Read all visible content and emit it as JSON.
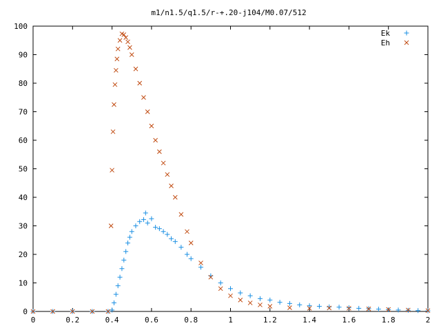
{
  "chart_data": {
    "type": "scatter",
    "title": "m1/n1.5/q1.5/r-+.20-j104/M0.07/512",
    "xlabel": "",
    "ylabel": "",
    "xlim": [
      0,
      2
    ],
    "ylim": [
      0,
      100
    ],
    "xticks": [
      "0",
      "0.2",
      "0.4",
      "0.6",
      "0.8",
      "1",
      "1.2",
      "1.4",
      "1.6",
      "1.8",
      "2"
    ],
    "yticks": [
      "0",
      "10",
      "20",
      "30",
      "40",
      "50",
      "60",
      "70",
      "80",
      "90",
      "100"
    ],
    "legend_position": "top-right",
    "grid": false,
    "series": [
      {
        "name": "Ek",
        "marker": "plus",
        "color": "#1a8fe3",
        "points": [
          [
            0.0,
            0
          ],
          [
            0.1,
            0
          ],
          [
            0.2,
            0
          ],
          [
            0.3,
            0
          ],
          [
            0.38,
            0
          ],
          [
            0.4,
            0.5
          ],
          [
            0.41,
            3
          ],
          [
            0.42,
            6
          ],
          [
            0.43,
            9
          ],
          [
            0.44,
            12
          ],
          [
            0.45,
            15
          ],
          [
            0.46,
            18
          ],
          [
            0.47,
            21
          ],
          [
            0.48,
            24
          ],
          [
            0.49,
            26
          ],
          [
            0.5,
            28
          ],
          [
            0.52,
            30
          ],
          [
            0.54,
            31.5
          ],
          [
            0.56,
            32.2
          ],
          [
            0.57,
            34.5
          ],
          [
            0.58,
            31
          ],
          [
            0.6,
            32.5
          ],
          [
            0.62,
            29.5
          ],
          [
            0.64,
            29
          ],
          [
            0.66,
            28
          ],
          [
            0.68,
            27
          ],
          [
            0.7,
            25.5
          ],
          [
            0.72,
            24.5
          ],
          [
            0.75,
            22.5
          ],
          [
            0.78,
            20
          ],
          [
            0.8,
            18.5
          ],
          [
            0.85,
            15.5
          ],
          [
            0.9,
            12.5
          ],
          [
            0.95,
            10
          ],
          [
            1.0,
            8
          ],
          [
            1.05,
            6.5
          ],
          [
            1.1,
            5.5
          ],
          [
            1.15,
            4.5
          ],
          [
            1.2,
            4
          ],
          [
            1.25,
            3.2
          ],
          [
            1.3,
            2.8
          ],
          [
            1.35,
            2.3
          ],
          [
            1.4,
            2
          ],
          [
            1.45,
            1.8
          ],
          [
            1.5,
            1.6
          ],
          [
            1.55,
            1.5
          ],
          [
            1.6,
            1.3
          ],
          [
            1.65,
            1.1
          ],
          [
            1.7,
            1
          ],
          [
            1.75,
            0.8
          ],
          [
            1.8,
            0.6
          ],
          [
            1.85,
            0.5
          ],
          [
            1.9,
            0.4
          ],
          [
            1.95,
            0.3
          ],
          [
            2.0,
            0.2
          ]
        ]
      },
      {
        "name": "Eh",
        "marker": "cross",
        "color": "#c04a10",
        "points": [
          [
            0.0,
            0
          ],
          [
            0.1,
            0
          ],
          [
            0.2,
            0
          ],
          [
            0.3,
            0
          ],
          [
            0.38,
            0
          ],
          [
            0.395,
            30
          ],
          [
            0.4,
            49.5
          ],
          [
            0.405,
            63
          ],
          [
            0.41,
            72.5
          ],
          [
            0.415,
            79.5
          ],
          [
            0.42,
            84.5
          ],
          [
            0.425,
            88.5
          ],
          [
            0.43,
            92
          ],
          [
            0.44,
            95
          ],
          [
            0.45,
            97.3
          ],
          [
            0.46,
            97
          ],
          [
            0.47,
            96
          ],
          [
            0.48,
            94.5
          ],
          [
            0.49,
            92.5
          ],
          [
            0.5,
            90
          ],
          [
            0.52,
            85
          ],
          [
            0.54,
            80
          ],
          [
            0.56,
            75
          ],
          [
            0.58,
            70
          ],
          [
            0.6,
            65
          ],
          [
            0.62,
            60
          ],
          [
            0.64,
            56
          ],
          [
            0.66,
            52
          ],
          [
            0.68,
            48
          ],
          [
            0.7,
            44
          ],
          [
            0.72,
            40
          ],
          [
            0.75,
            34
          ],
          [
            0.78,
            28
          ],
          [
            0.8,
            24
          ],
          [
            0.85,
            17
          ],
          [
            0.9,
            12
          ],
          [
            0.95,
            8
          ],
          [
            1.0,
            5.5
          ],
          [
            1.05,
            4
          ],
          [
            1.1,
            3
          ],
          [
            1.15,
            2.3
          ],
          [
            1.2,
            1.8
          ],
          [
            1.3,
            1.3
          ],
          [
            1.4,
            1.1
          ],
          [
            1.5,
            1.2
          ],
          [
            1.6,
            1.1
          ],
          [
            1.7,
            0.9
          ],
          [
            1.8,
            0.7
          ],
          [
            1.9,
            0.5
          ],
          [
            2.0,
            0.3
          ]
        ]
      }
    ]
  }
}
